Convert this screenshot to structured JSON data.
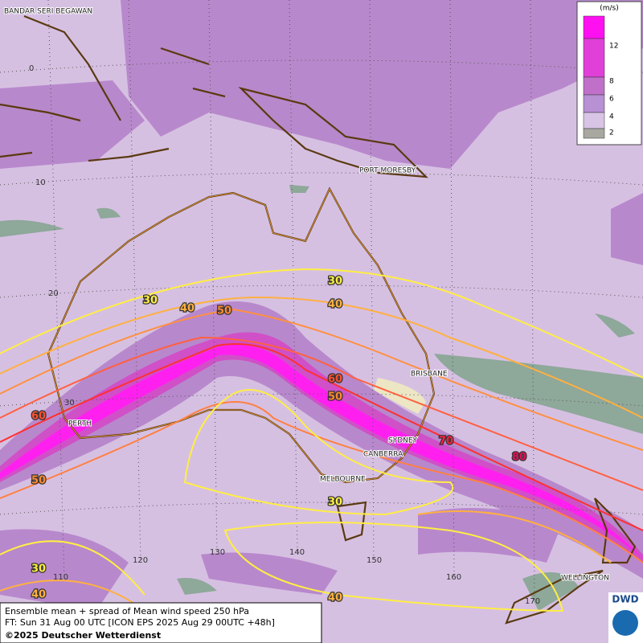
{
  "map": {
    "cities": [
      "BANDAR SERI BEGAWAN",
      "PORT MORESBY",
      "BRISBANE",
      "PERTH",
      "SYDNEY",
      "CANBERRA",
      "MELBOURNE",
      "WELLINGTON"
    ],
    "latitude_labels": [
      0,
      10,
      20,
      30
    ],
    "longitude_labels": [
      110,
      120,
      130,
      140,
      150,
      160,
      170
    ],
    "contour_labels": [
      30,
      40,
      50,
      30,
      40,
      60,
      50,
      70,
      80,
      60,
      50,
      30,
      30,
      40,
      40
    ]
  },
  "legend": {
    "unit": "(m/s)",
    "levels": [
      12,
      8,
      6,
      4,
      2
    ],
    "colors": [
      "#ff10f0",
      "#e040d8",
      "#c070c8",
      "#b890d4",
      "#d8c4e4",
      "#a8a8a0"
    ]
  },
  "footer": {
    "lines": [
      "Ensemble mean + spread of Mean wind speed 250 hPa",
      "FT: Sun 31 Aug 00 UTC [ICON EPS 2025 Aug 29 00UTC +48h]",
      "©2025 Deutscher Wetterdienst"
    ],
    "logo": "DWD"
  }
}
